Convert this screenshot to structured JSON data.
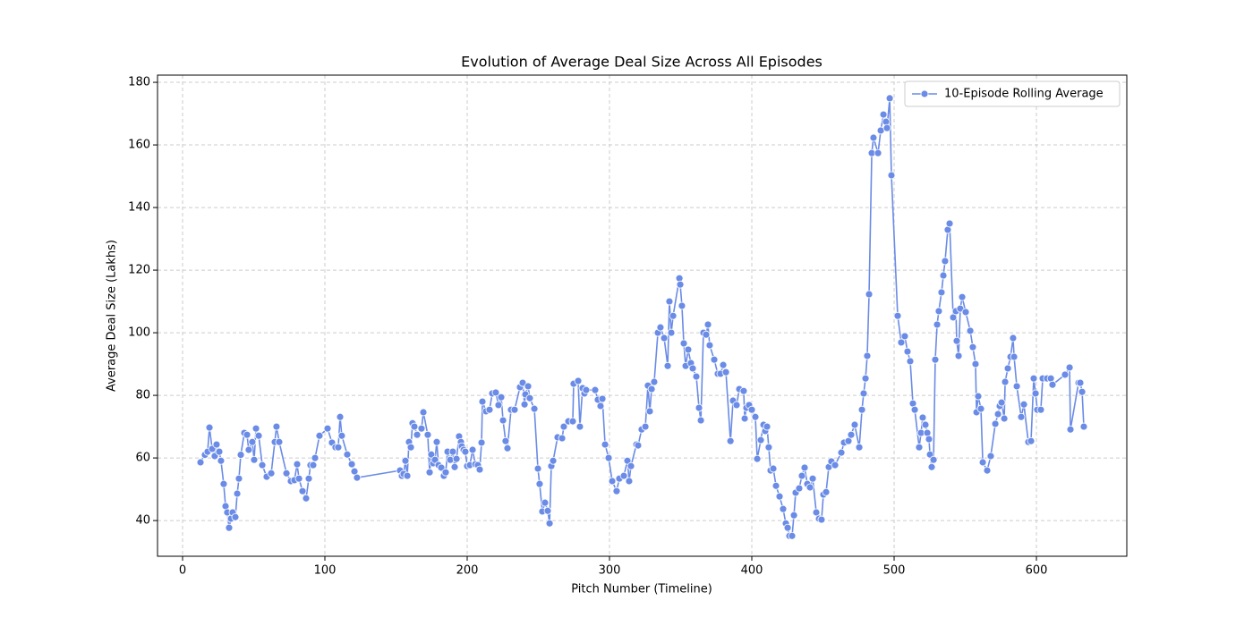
{
  "chart_data": {
    "type": "line",
    "title": "Evolution of Average Deal Size Across All Episodes",
    "xlabel": "Pitch Number (Timeline)",
    "ylabel": "Average Deal Size (Lakhs)",
    "xlim": [
      -17.6,
      663.5
    ],
    "ylim": [
      28.6,
      182.3
    ],
    "xticks": [
      0,
      100,
      200,
      300,
      400,
      500,
      600
    ],
    "yticks": [
      40,
      60,
      80,
      100,
      120,
      140,
      160,
      180
    ],
    "grid": true,
    "legend": "upper right",
    "x": [
      12.6,
      15.7,
      17.6,
      18.9,
      20.8,
      22.6,
      23.9,
      25.8,
      27,
      28.9,
      30.2,
      31.4,
      32.7,
      34,
      35.2,
      37.1,
      38.4,
      39.6,
      40.9,
      43.4,
      45.3,
      46.5,
      49,
      50.3,
      51.6,
      53.5,
      56,
      59.1,
      62.3,
      64.8,
      66,
      67.9,
      73,
      76.1,
      78.6,
      80.5,
      81.8,
      84.3,
      86.8,
      88.7,
      89.9,
      91.8,
      93.1,
      96.2,
      101.9,
      105,
      107.5,
      109.4,
      110.7,
      111.9,
      115.7,
      118.9,
      120.8,
      122.6,
      152.8,
      154.1,
      155.3,
      156.6,
      157.9,
      159.1,
      160.4,
      161.6,
      162.9,
      164.8,
      167.9,
      169.2,
      172.3,
      173.6,
      174.8,
      176.1,
      177.4,
      178.6,
      179.9,
      181.8,
      183.6,
      184.9,
      186.2,
      188.1,
      189.9,
      191.2,
      192.5,
      194.3,
      195.6,
      196.2,
      197.5,
      198.7,
      200,
      201.9,
      203.8,
      205.7,
      207.5,
      208.8,
      210.1,
      210.7,
      213.2,
      215.7,
      217.6,
      220.1,
      222,
      223.9,
      225.2,
      227,
      228.3,
      230.8,
      233.3,
      237.1,
      239,
      240.3,
      240.9,
      242.8,
      244,
      247.2,
      249.7,
      250.9,
      252.8,
      254.7,
      256.6,
      257.9,
      259.1,
      260.4,
      263.5,
      266.7,
      267.9,
      271.1,
      274.2,
      274.8,
      278,
      279.2,
      281.1,
      282.4,
      283.6,
      289.9,
      291.8,
      293.7,
      295,
      296.9,
      299.4,
      301.9,
      305,
      306.9,
      310.1,
      312.6,
      313.8,
      315.1,
      318.9,
      320.1,
      322.6,
      325.2,
      327,
      328.3,
      329.6,
      331.4,
      334,
      335.8,
      338.4,
      340.9,
      342.1,
      343.4,
      344.7,
      349.1,
      349.7,
      350.9,
      352.2,
      353.5,
      355.3,
      357.2,
      358.5,
      361,
      362.9,
      364.2,
      366,
      367.9,
      369.2,
      370.4,
      373.6,
      376.1,
      378,
      379.9,
      381.8,
      385,
      386.8,
      389.3,
      391.2,
      394.3,
      395,
      396.2,
      398.1,
      400,
      402.5,
      403.8,
      406.3,
      408.2,
      409.4,
      410.7,
      411.9,
      413.2,
      415.1,
      417,
      419.5,
      422,
      423.9,
      425.2,
      426.4,
      428.3,
      429.6,
      430.8,
      433.3,
      435.2,
      437.1,
      439,
      440.9,
      442.8,
      445.3,
      447.2,
      449,
      450.3,
      452.2,
      454.1,
      455.9,
      458.5,
      462.9,
      464.8,
      467.9,
      469.8,
      472.3,
      475.5,
      477.4,
      478.6,
      479.9,
      481.1,
      482.4,
      484.3,
      485.5,
      488.7,
      490.6,
      492.5,
      494.3,
      495,
      496.9,
      498.1,
      502.5,
      505,
      507.5,
      509.4,
      511.3,
      513.2,
      514.5,
      517.6,
      518.9,
      520.1,
      522,
      523.3,
      524.5,
      525.2,
      526.4,
      527.7,
      528.9,
      530.2,
      531.4,
      533.3,
      534.6,
      535.8,
      537.7,
      539,
      541.5,
      543.4,
      544,
      545.3,
      546.5,
      547.8,
      550.3,
      553.5,
      555.3,
      557.2,
      557.9,
      559.1,
      561,
      562.3,
      565.4,
      567.9,
      571.1,
      573,
      574.2,
      575.5,
      577.4,
      578,
      579.9,
      581.8,
      583.6,
      584.3,
      586.2,
      589.3,
      591.2,
      594.3,
      596.2,
      598.1,
      599.4,
      600.6,
      603.1,
      604.4,
      607.5,
      610.1,
      611.3,
      620.1,
      623.3,
      623.9,
      629.6,
      630.8,
      632.1,
      633.3
    ],
    "series": [
      {
        "name": "10-Episode Rolling Average",
        "color": "#6a8be6",
        "values": [
          58.6,
          61,
          62,
          69.7,
          62.9,
          60.6,
          64.3,
          62,
          59.1,
          51.7,
          44.6,
          42.6,
          37.7,
          40.6,
          42.6,
          41.1,
          48.6,
          53.4,
          61,
          68,
          67.4,
          62.6,
          65.1,
          59.4,
          69.4,
          67.1,
          57.7,
          54,
          55.1,
          65.1,
          70,
          65.1,
          55.1,
          52.6,
          52.9,
          58,
          53.4,
          49.4,
          47.1,
          53.4,
          57.7,
          57.7,
          60,
          67.1,
          69.4,
          64.9,
          63.4,
          63.4,
          73.1,
          67.1,
          61.1,
          58,
          55.7,
          53.7,
          56,
          54.3,
          54.9,
          59.1,
          54.3,
          65.1,
          63.4,
          71.1,
          70,
          67.4,
          69.4,
          74.6,
          67.4,
          55.4,
          61.1,
          58.3,
          59.4,
          65.1,
          57.7,
          56.9,
          54.3,
          55.4,
          62,
          59.4,
          62,
          57.1,
          59.7,
          66.9,
          65.1,
          63.7,
          62.6,
          62,
          57.4,
          57.7,
          62.6,
          58,
          57.7,
          56.3,
          64.9,
          78,
          74.9,
          75.4,
          80.6,
          80.9,
          76.9,
          79.4,
          72,
          65.4,
          63.1,
          75.4,
          75.4,
          82.6,
          84,
          77.1,
          80.3,
          82.9,
          79.1,
          75.7,
          56.6,
          51.7,
          42.9,
          45.7,
          43.1,
          39.1,
          57.4,
          59.1,
          66.6,
          66.3,
          70,
          71.7,
          71.7,
          83.7,
          84.6,
          70,
          82.3,
          80.6,
          81.7,
          81.7,
          78.6,
          76.6,
          78.9,
          64.3,
          60,
          52.6,
          49.4,
          53.4,
          54.3,
          59.1,
          52.6,
          57.4,
          64.3,
          64,
          69.1,
          70,
          83.1,
          74.9,
          82,
          84.3,
          100,
          101.7,
          98.3,
          89.4,
          110,
          100,
          105.4,
          117.4,
          115.4,
          108.6,
          96.6,
          89.4,
          94.6,
          90.3,
          88.6,
          86,
          76,
          72,
          100,
          99.4,
          102.6,
          96,
          91.4,
          86.9,
          86.9,
          89.7,
          87.4,
          65.4,
          78.3,
          76.9,
          82,
          81.4,
          72.6,
          76,
          76.9,
          75.4,
          73.1,
          59.7,
          65.7,
          70.6,
          68.6,
          70,
          63.4,
          56,
          56.6,
          51.1,
          47.7,
          43.7,
          39.1,
          37.7,
          35.1,
          35.1,
          41.7,
          48.9,
          50.3,
          54.3,
          56.9,
          51.7,
          50.6,
          53.4,
          42.6,
          40.6,
          40.3,
          48.3,
          49.1,
          57.1,
          58.9,
          57.7,
          61.7,
          64.9,
          65.4,
          67.4,
          70.6,
          63.4,
          75.4,
          80.6,
          85.4,
          92.6,
          112.3,
          157.4,
          162.3,
          157.4,
          164.6,
          169.7,
          167.4,
          165.4,
          174.9,
          150.3,
          105.4,
          96.9,
          98.9,
          94,
          90.9,
          77.4,
          75.4,
          63.4,
          68,
          72.9,
          70.6,
          68,
          66,
          61.1,
          57.1,
          59.4,
          91.4,
          102.6,
          106.9,
          112.9,
          118.3,
          122.9,
          132.9,
          134.9,
          104.9,
          106.9,
          97.4,
          92.6,
          107.7,
          111.4,
          106.6,
          100.6,
          95.4,
          90,
          74.6,
          79.7,
          75.7,
          58.6,
          56,
          60.6,
          70.9,
          74,
          76.6,
          77.7,
          72.6,
          84.3,
          88.6,
          92.3,
          98.3,
          92.3,
          82.9,
          73.1,
          77.1,
          65.1,
          65.4,
          85.4,
          80.6,
          75.4,
          75.4,
          85.4,
          85.4,
          85.4,
          83.4,
          86.6,
          88.9,
          69.1,
          84,
          84,
          81.1,
          70
        ]
      }
    ]
  }
}
